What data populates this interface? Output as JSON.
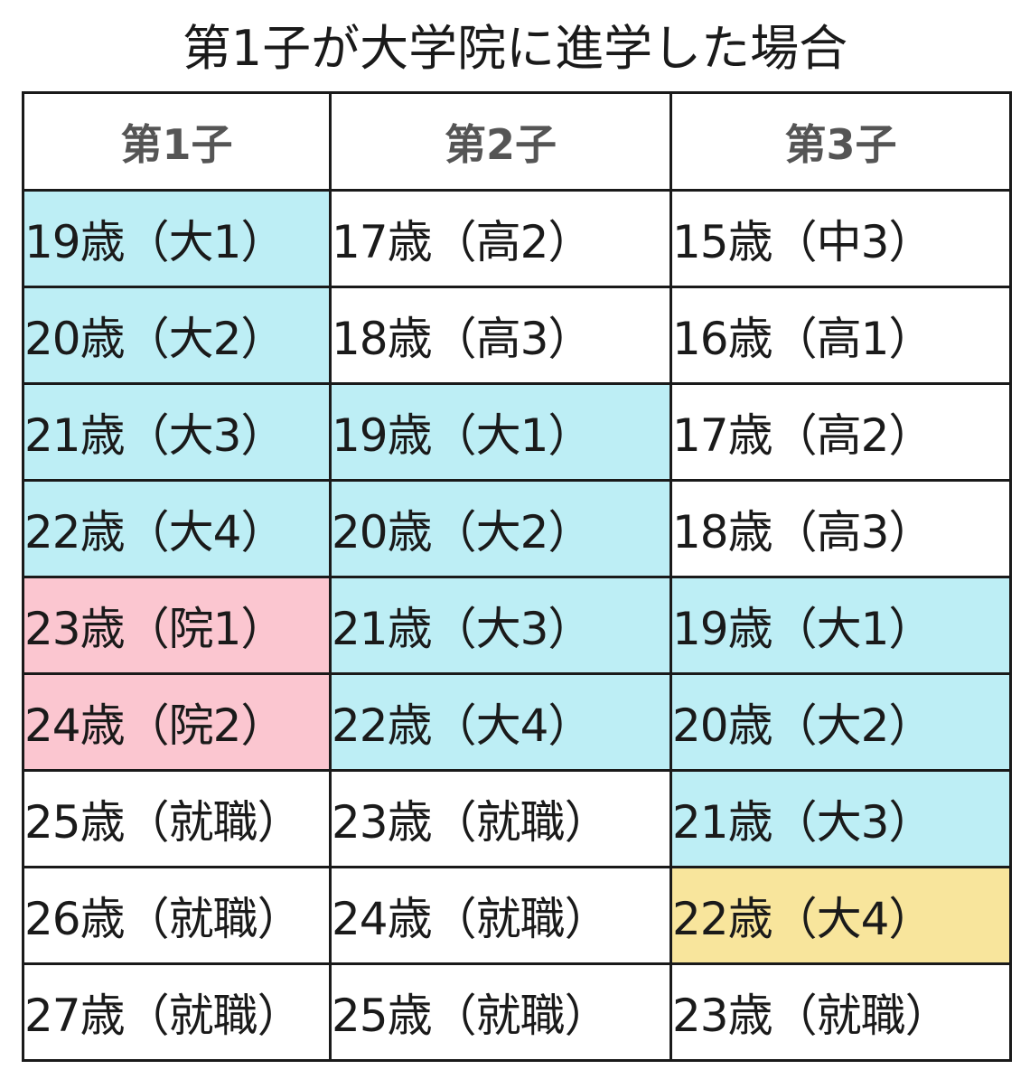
{
  "title": "第1子が大学院に進学した場合",
  "headers": [
    "第1子",
    "第2子",
    "第3子"
  ],
  "colors": {
    "blue": "#bdeef5",
    "pink": "#fbc6d0",
    "yellow": "#f8e59c",
    "white": "#ffffff"
  },
  "rows": [
    [
      "19歳（大1）",
      "17歳（高2）",
      "15歳（中3）"
    ],
    [
      "20歳（大2）",
      "18歳（高3）",
      "16歳（高1）"
    ],
    [
      "21歳（大3）",
      "19歳（大1）",
      "17歳（高2）"
    ],
    [
      "22歳（大4）",
      "20歳（大2）",
      "18歳（高3）"
    ],
    [
      "23歳（院1）",
      "21歳（大3）",
      "19歳（大1）"
    ],
    [
      "24歳（院2）",
      "22歳（大4）",
      "20歳（大2）"
    ],
    [
      "25歳（就職）",
      "23歳（就職）",
      "21歳（大3）"
    ],
    [
      "26歳（就職）",
      "24歳（就職）",
      "22歳（大4）"
    ],
    [
      "27歳（就職）",
      "25歳（就職）",
      "23歳（就職）"
    ]
  ]
}
